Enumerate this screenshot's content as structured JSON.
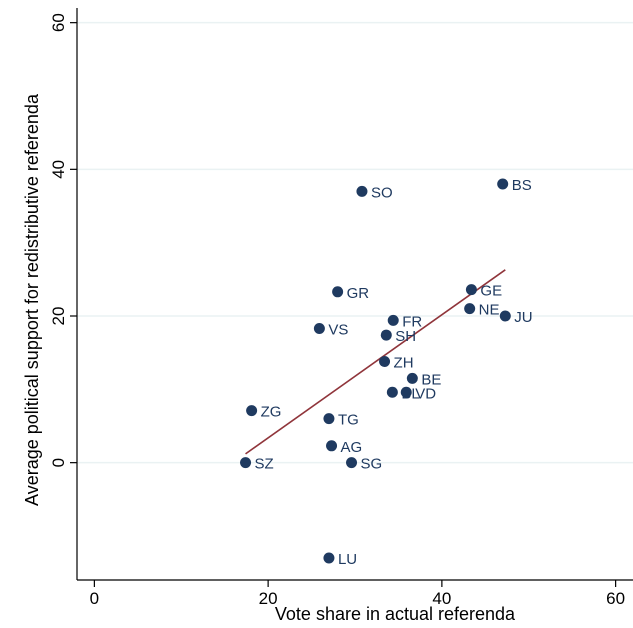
{
  "chart_data": {
    "type": "scatter",
    "xlabel": "Vote share in actual referenda",
    "ylabel": "Average political support for redistributive referenda",
    "xlim": [
      -2,
      62
    ],
    "ylim": [
      -16,
      62
    ],
    "xticks": [
      0,
      20,
      40,
      60
    ],
    "yticks": [
      0,
      20,
      40,
      60
    ],
    "grid": true,
    "points": [
      {
        "label": "BS",
        "x": 47.0,
        "y": 38.0
      },
      {
        "label": "SO",
        "x": 30.8,
        "y": 37.0
      },
      {
        "label": "GE",
        "x": 43.4,
        "y": 23.6
      },
      {
        "label": "GR",
        "x": 28.0,
        "y": 23.3
      },
      {
        "label": "NE",
        "x": 43.2,
        "y": 21.0
      },
      {
        "label": "JU",
        "x": 47.3,
        "y": 20.0
      },
      {
        "label": "FR",
        "x": 34.4,
        "y": 19.4
      },
      {
        "label": "VS",
        "x": 25.9,
        "y": 18.3
      },
      {
        "label": "SH",
        "x": 33.6,
        "y": 17.4
      },
      {
        "label": "ZH",
        "x": 33.4,
        "y": 13.8
      },
      {
        "label": "BE",
        "x": 36.6,
        "y": 11.5
      },
      {
        "label": "BL",
        "x": 34.3,
        "y": 9.6
      },
      {
        "label": "VD",
        "x": 35.9,
        "y": 9.6
      },
      {
        "label": "ZG",
        "x": 18.1,
        "y": 7.1
      },
      {
        "label": "TG",
        "x": 27.0,
        "y": 6.0
      },
      {
        "label": "AG",
        "x": 27.3,
        "y": 2.3
      },
      {
        "label": "SZ",
        "x": 17.4,
        "y": 0.0
      },
      {
        "label": "SG",
        "x": 29.6,
        "y": 0.0
      },
      {
        "label": "LU",
        "x": 27.0,
        "y": -13.0
      }
    ],
    "fit_line": {
      "x": [
        17.4,
        47.3
      ],
      "y": [
        1.2,
        26.3
      ]
    },
    "colors": {
      "point": "#1f3a60",
      "fit": "#90353b",
      "grid": "#eaf2f3",
      "axis": "#000000"
    }
  }
}
